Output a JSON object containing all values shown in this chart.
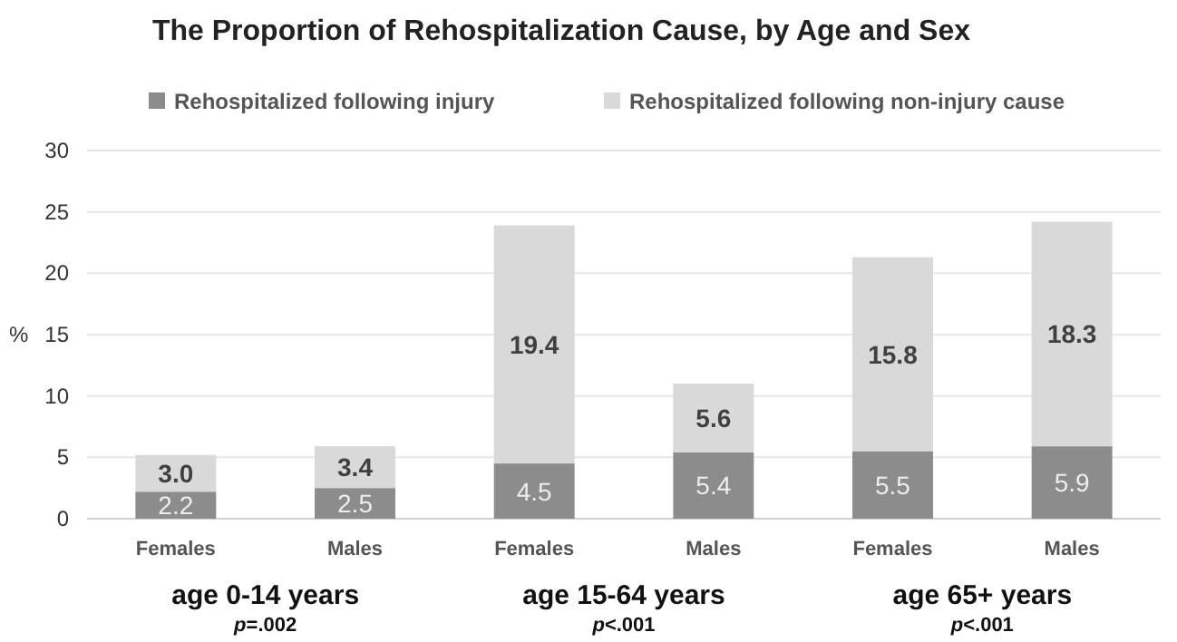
{
  "chart_data": {
    "type": "bar",
    "stacked": true,
    "title": "The Proportion of Rehospitalization Cause, by Age and Sex",
    "ylabel": "%",
    "categories": [
      "Females",
      "Males",
      "Females",
      "Males",
      "Females",
      "Males"
    ],
    "series": [
      {
        "name": "Rehospitalized following injury",
        "color": "#8c8c8c",
        "values": [
          2.2,
          2.5,
          4.5,
          5.4,
          5.5,
          5.9
        ],
        "value_labels": [
          "2.2",
          "2.5",
          "4.5",
          "5.4",
          "5.5",
          "5.9"
        ]
      },
      {
        "name": "Rehospitalized following non-injury cause",
        "color": "#d9d9d9",
        "values": [
          3.0,
          3.4,
          19.4,
          5.6,
          15.8,
          18.3
        ],
        "value_labels": [
          "3.0",
          "3.4",
          "19.4",
          "5.6",
          "15.8",
          "18.3"
        ]
      }
    ],
    "ylim": [
      0,
      30
    ],
    "yticks": [
      0,
      5,
      10,
      15,
      20,
      25,
      30
    ],
    "grid": "y",
    "legend": "top",
    "annotations": [
      "age 0-14 years",
      "p=.002",
      "age 15-64 years",
      "p<.001",
      "age 65+ years",
      "p<.001"
    ]
  }
}
